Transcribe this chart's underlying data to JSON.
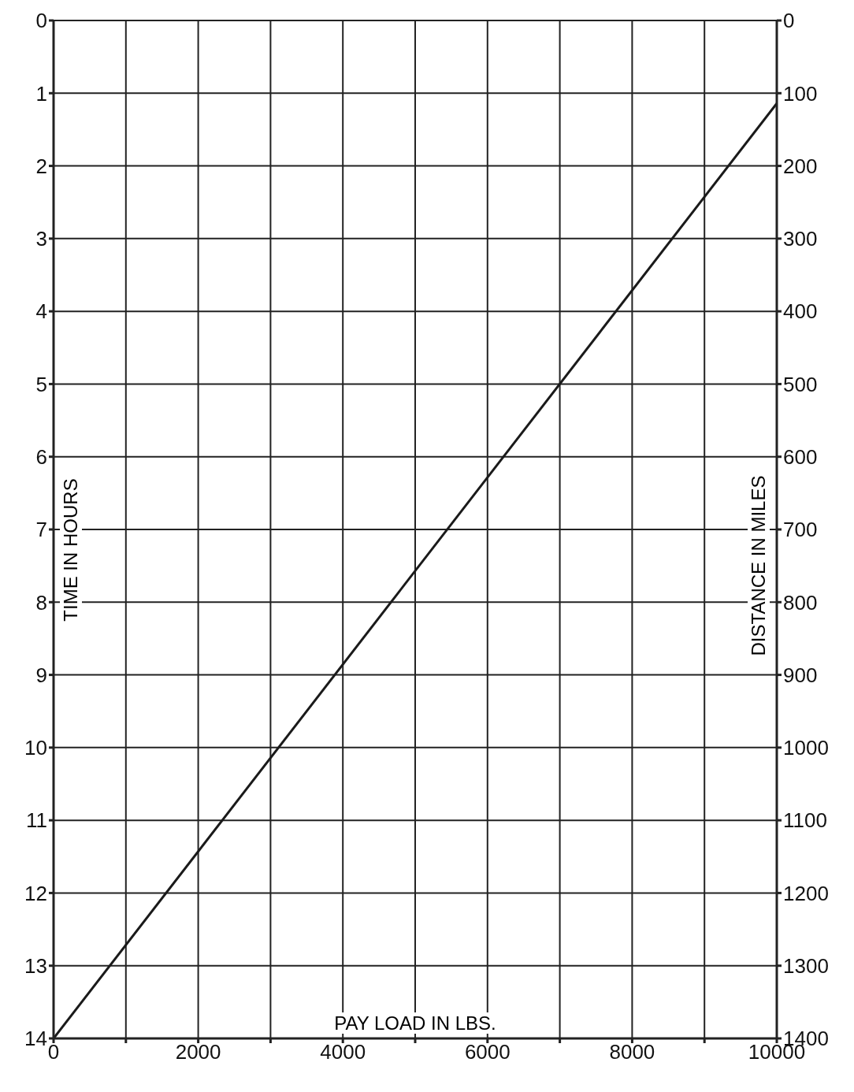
{
  "chart_data": {
    "type": "line",
    "xlabel": "PAY LOAD IN LBS.",
    "ylabel": "TIME IN HOURS",
    "y2label": "DISTANCE IN MILES",
    "x": [
      0,
      10000
    ],
    "series": [
      {
        "color": "#1a1a1a",
        "values": [
          14,
          1.14
        ]
      }
    ],
    "xlim": [
      0,
      10000
    ],
    "xticks": [
      0,
      {
        "value": 1000,
        "label": null
      },
      2000,
      {
        "value": 3000,
        "label": null
      },
      4000,
      {
        "value": 5000,
        "label": null
      },
      6000,
      {
        "value": 7000,
        "label": null
      },
      8000,
      {
        "value": 9000,
        "label": null
      },
      10000
    ],
    "ylim": [
      14,
      0
    ],
    "yticks": [
      0,
      1,
      2,
      3,
      4,
      5,
      6,
      7,
      8,
      9,
      10,
      11,
      12,
      13,
      14
    ],
    "y2lim": [
      1400,
      0
    ],
    "y2ticks": [
      0,
      100,
      200,
      300,
      400,
      500,
      600,
      700,
      800,
      900,
      1000,
      1100,
      1200,
      1300,
      1400
    ],
    "grid": true,
    "marker": "none",
    "line_style": "solid"
  }
}
